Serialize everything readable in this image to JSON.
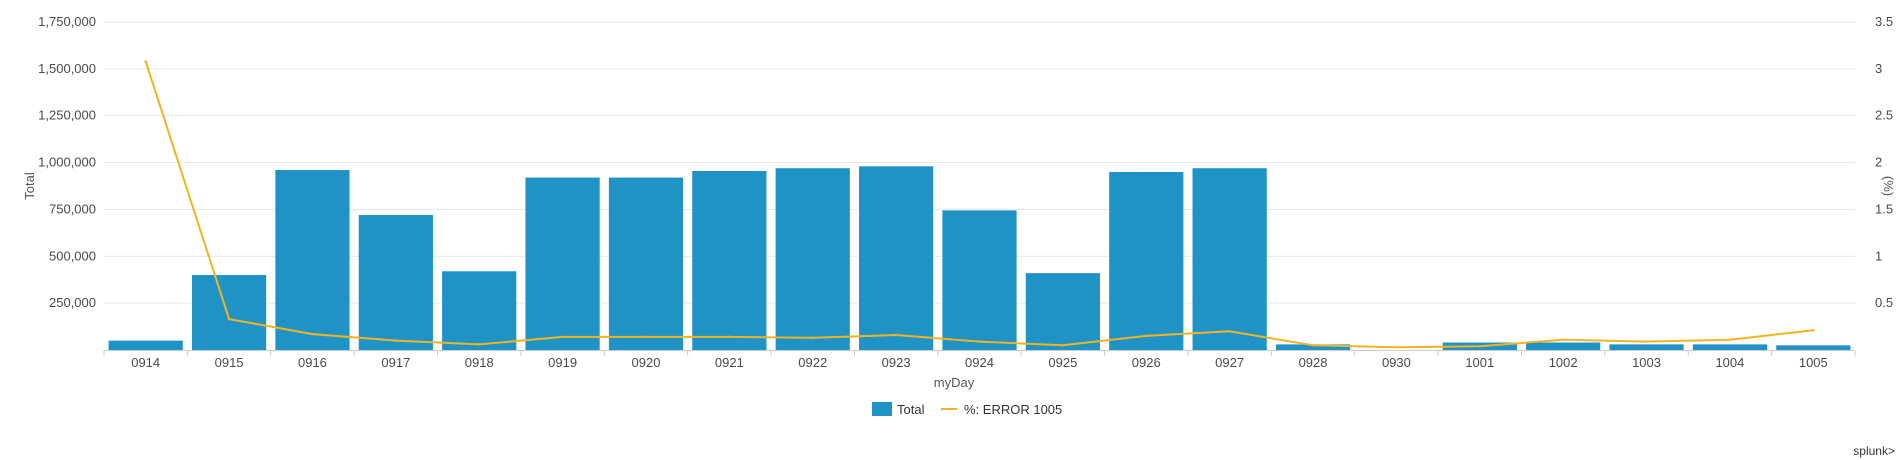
{
  "chart_data": {
    "type": "bar",
    "categories": [
      "0914",
      "0915",
      "0916",
      "0917",
      "0918",
      "0919",
      "0920",
      "0921",
      "0922",
      "0923",
      "0924",
      "0925",
      "0926",
      "0927",
      "0928",
      "0930",
      "1001",
      "1002",
      "1003",
      "1004",
      "1005"
    ],
    "series": [
      {
        "name": "Total",
        "type": "bar",
        "axis": "left",
        "color": "#1f93c6",
        "values": [
          50000,
          400000,
          960000,
          720000,
          420000,
          920000,
          920000,
          955000,
          970000,
          980000,
          745000,
          410000,
          950000,
          970000,
          30000,
          0,
          40000,
          40000,
          30000,
          30000,
          25000
        ]
      },
      {
        "name": "%: ERROR 1005",
        "type": "line",
        "axis": "right",
        "color": "#f2b322",
        "values": [
          3.08,
          0.33,
          0.17,
          0.1,
          0.06,
          0.14,
          0.14,
          0.14,
          0.13,
          0.16,
          0.09,
          0.05,
          0.15,
          0.2,
          0.05,
          0.03,
          0.04,
          0.11,
          0.09,
          0.11,
          0.21
        ]
      }
    ],
    "xlabel": "myDay",
    "ylabel": "Total",
    "ylabel_right": "(%)",
    "ylim": [
      0,
      1750000
    ],
    "ylim_right": [
      0,
      3.5
    ],
    "y_ticks": [
      "250,000",
      "500,000",
      "750,000",
      "1,000,000",
      "1,250,000",
      "1,500,000",
      "1,750,000"
    ],
    "y_tick_values": [
      250000,
      500000,
      750000,
      1000000,
      1250000,
      1500000,
      1750000
    ],
    "y_right_ticks": [
      "0.5",
      "1",
      "1.5",
      "2",
      "2.5",
      "3",
      "3.5"
    ],
    "y_right_tick_values": [
      0.5,
      1,
      1.5,
      2,
      2.5,
      3,
      3.5
    ],
    "grid": true,
    "legend_position": "bottom"
  },
  "brand": "splunk>"
}
